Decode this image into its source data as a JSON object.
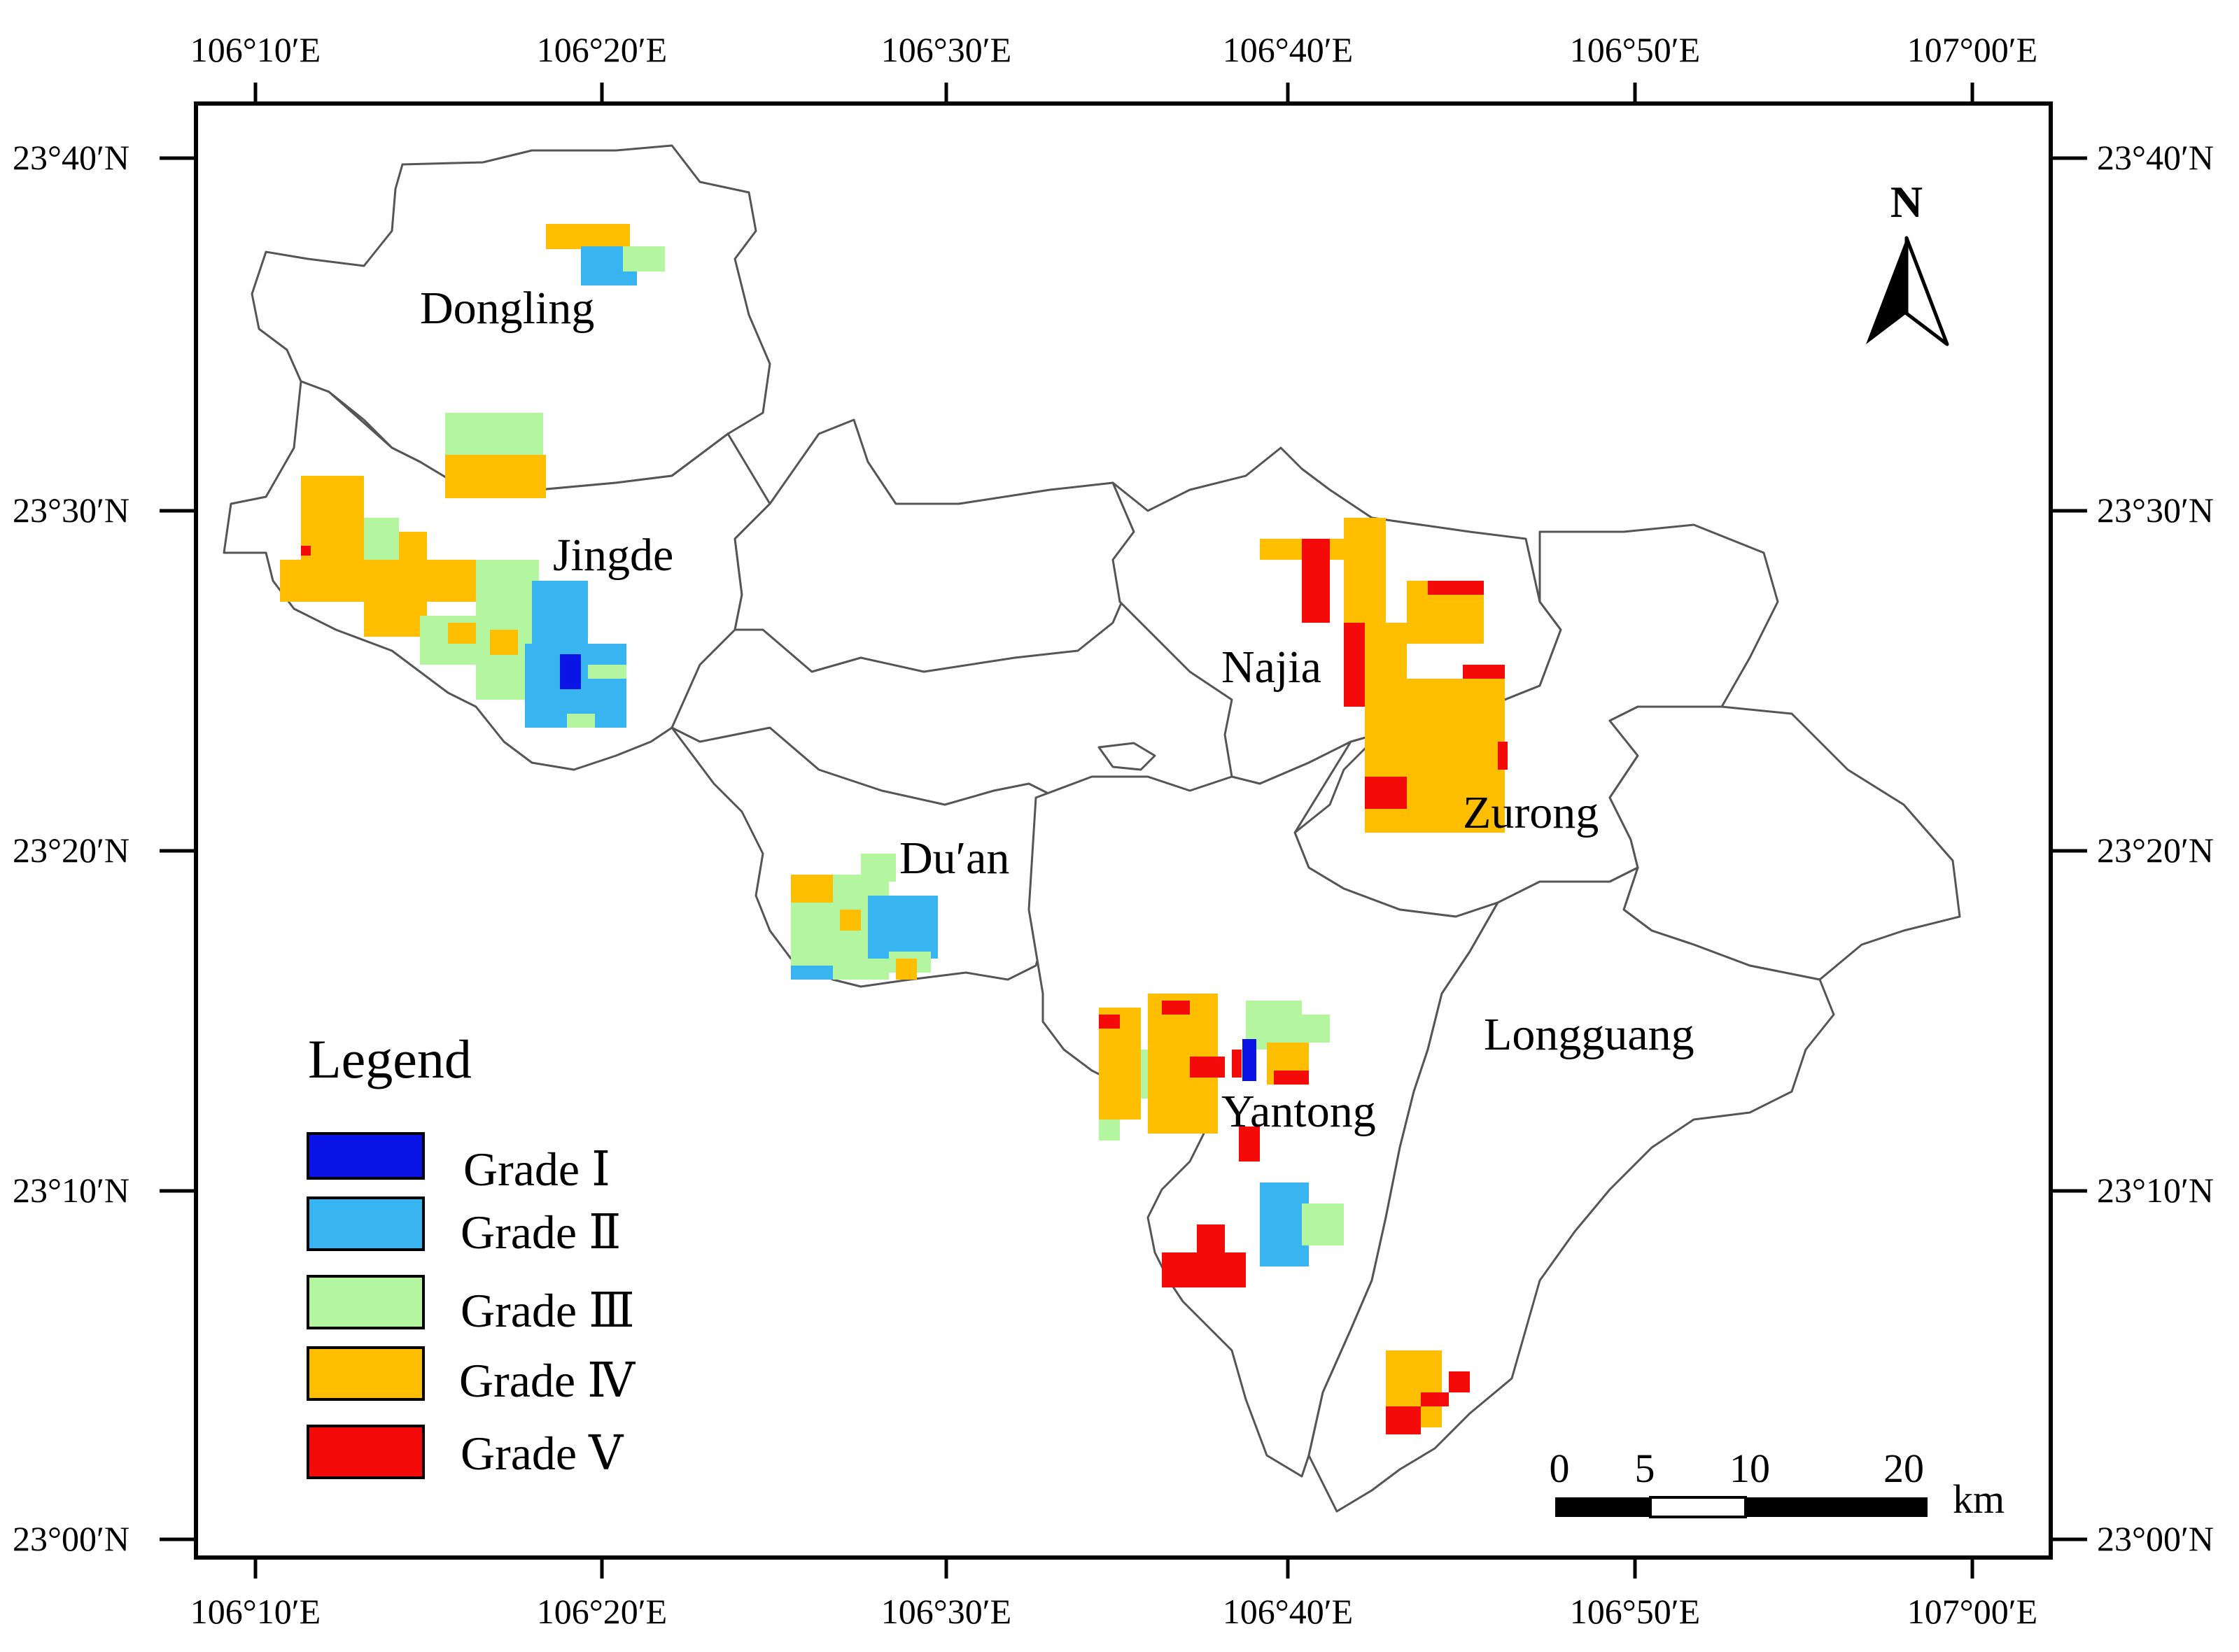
{
  "axes": {
    "lon_ticks": [
      "106°10′E",
      "106°20′E",
      "106°30′E",
      "106°40′E",
      "106°50′E",
      "107°00′E"
    ],
    "lat_ticks": [
      "23°40′N",
      "23°30′N",
      "23°20′N",
      "23°10′N",
      "23°00′N"
    ]
  },
  "towns": {
    "dongling": "Dongling",
    "jingde": "Jingde",
    "najia": "Najia",
    "zurong": "Zurong",
    "duan": "Du′an",
    "yantong": "Yantong",
    "longguang": "Longguang"
  },
  "north_arrow": {
    "label": "N",
    "icon": "north-arrow-icon"
  },
  "scale_bar": {
    "ticks": [
      "0",
      "5",
      "10",
      "20"
    ],
    "unit": "km"
  },
  "legend": {
    "title": "Legend",
    "items": [
      {
        "label": "Grade Ⅰ",
        "color": "#0a14e6"
      },
      {
        "label": "Grade Ⅱ",
        "color": "#38b4f0"
      },
      {
        "label": "Grade Ⅲ",
        "color": "#b4f5a0"
      },
      {
        "label": "Grade Ⅳ",
        "color": "#ffbe00"
      },
      {
        "label": "Grade Ⅴ",
        "color": "#f50a0a"
      }
    ]
  }
}
